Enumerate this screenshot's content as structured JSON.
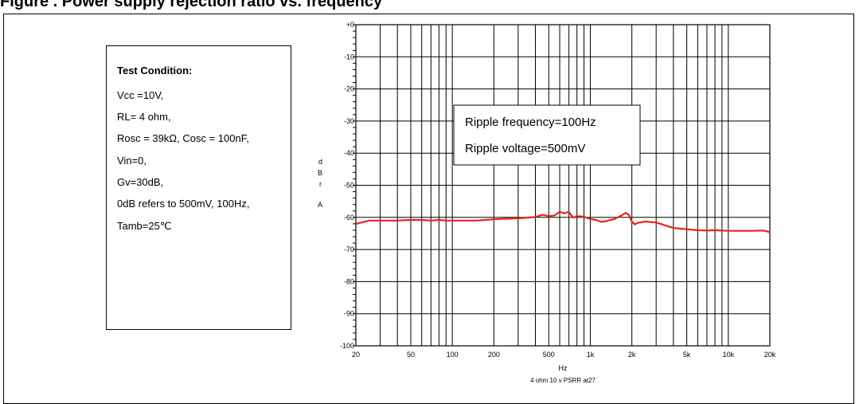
{
  "page": {
    "title": "Figure   . Power supply rejection ratio vs. frequency"
  },
  "condition_box": {
    "heading": "Test Condition:",
    "lines": [
      "Vcc =10V,",
      "RL= 4 ohm,",
      "Rosc = 39kΩ, Cosc = 100nF,",
      "Vin=0,",
      "Gv=30dB,",
      "0dB refers to 500mV, 100Hz,",
      "Tamb=25℃"
    ]
  },
  "chart_data": {
    "type": "line",
    "title": "",
    "xlabel": "Hz",
    "footer": "4 ohm  10 v PSRR at27",
    "ylabel_chars": [
      "d",
      "B",
      "r",
      "",
      "A"
    ],
    "x_scale": "log",
    "xlim": [
      20,
      20000
    ],
    "ylim": [
      -100,
      0
    ],
    "x_ticks": [
      20,
      50,
      100,
      200,
      500,
      1000,
      2000,
      5000,
      10000,
      20000
    ],
    "x_tick_labels": [
      "20",
      "50",
      "100",
      "200",
      "500",
      "1k",
      "2k",
      "5k",
      "10k",
      "20k"
    ],
    "y_ticks": [
      0,
      -10,
      -20,
      -30,
      -40,
      -50,
      -60,
      -70,
      -80,
      -90,
      -100
    ],
    "y_tick_labels": [
      "+0",
      "-10",
      "-20",
      "-30",
      "-40",
      "-50",
      "-60",
      "-70",
      "-80",
      "-90",
      "-100"
    ],
    "grid": true,
    "annotation": [
      "Ripple frequency=100Hz",
      "Ripple voltage=500mV"
    ],
    "series": [
      {
        "color": "#e8231f",
        "x": [
          20,
          25,
          30,
          40,
          50,
          60,
          70,
          80,
          90,
          100,
          120,
          150,
          200,
          250,
          300,
          350,
          400,
          450,
          500,
          550,
          600,
          650,
          700,
          750,
          800,
          900,
          1000,
          1100,
          1200,
          1300,
          1400,
          1500,
          1700,
          1800,
          1900,
          2000,
          2100,
          2200,
          2500,
          3000,
          3500,
          4000,
          5000,
          6000,
          7000,
          8000,
          10000,
          12000,
          15000,
          18000,
          20000
        ],
        "y": [
          -62,
          -61,
          -61,
          -61,
          -60.8,
          -60.8,
          -61,
          -60.8,
          -61,
          -61,
          -61,
          -61,
          -60.6,
          -60.4,
          -60.3,
          -60.1,
          -59.9,
          -59.2,
          -59.6,
          -59.4,
          -58.3,
          -58.7,
          -58.3,
          -60.1,
          -59.6,
          -59.8,
          -60.5,
          -60.8,
          -61.4,
          -61.2,
          -60.8,
          -60.5,
          -59.3,
          -58.6,
          -59.2,
          -61.3,
          -62.2,
          -61.7,
          -61.3,
          -61.6,
          -62.5,
          -63.3,
          -63.7,
          -64,
          -64.1,
          -64,
          -64.2,
          -64.2,
          -64.2,
          -64.1,
          -64.6
        ]
      }
    ]
  }
}
